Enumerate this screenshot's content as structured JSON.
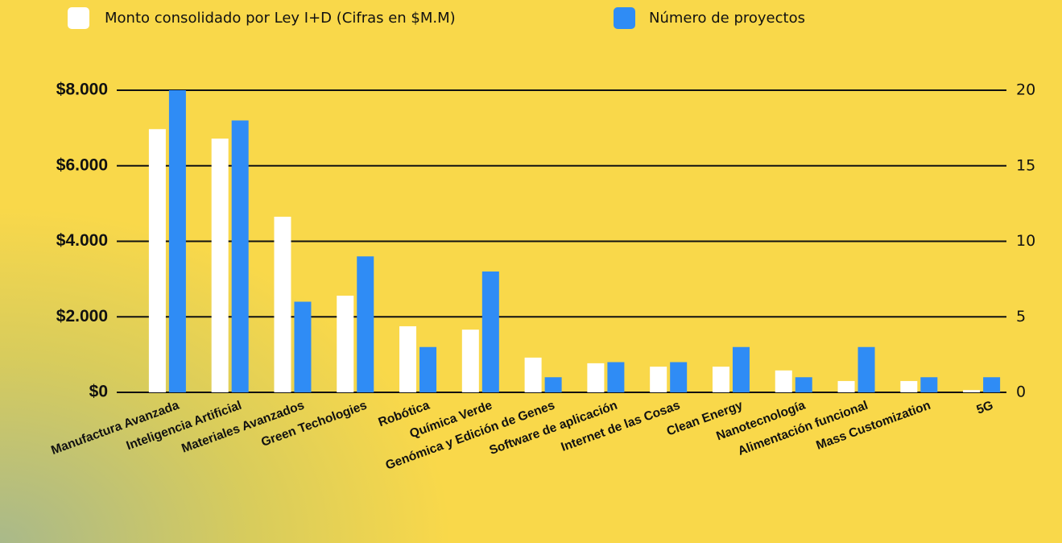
{
  "chart_data": {
    "type": "bar",
    "categories": [
      "Manufactura Avanzada",
      "Inteligencia Artificial",
      "Materiales Avanzados",
      "Green Techologies",
      "Robótica",
      "Química Verde",
      "Genómica y Edición de Genes",
      "Software de aplicación",
      "Internet de las Cosas",
      "Clean Energy",
      "Nanotecnología",
      "Alimentación funcional",
      "Mass Customization",
      "5G"
    ],
    "series": [
      {
        "name": "Monto consolidado por Ley I+D (Cifras en $M.M)",
        "color": "#ffffff",
        "values": [
          6970,
          6720,
          4650,
          2560,
          1750,
          1660,
          920,
          770,
          680,
          680,
          580,
          300,
          300,
          60
        ]
      },
      {
        "name": "Número de proyectos",
        "color": "#2f8cf5",
        "axis": "y2",
        "values": [
          20,
          18,
          6,
          9,
          3,
          8,
          1,
          2,
          2,
          3,
          1,
          3,
          1,
          1
        ]
      }
    ],
    "ylim": [
      0,
      8000
    ],
    "yticks": [
      {
        "value": 0,
        "label": "$0"
      },
      {
        "value": 2000,
        "label": "$2.000"
      },
      {
        "value": 4000,
        "label": "$4.000"
      },
      {
        "value": 6000,
        "label": "$6.000"
      },
      {
        "value": 8000,
        "label": "$8.000"
      }
    ],
    "y2lim": [
      0,
      20
    ],
    "y2ticks": [
      0,
      5,
      10,
      15,
      20
    ],
    "grid": true
  }
}
